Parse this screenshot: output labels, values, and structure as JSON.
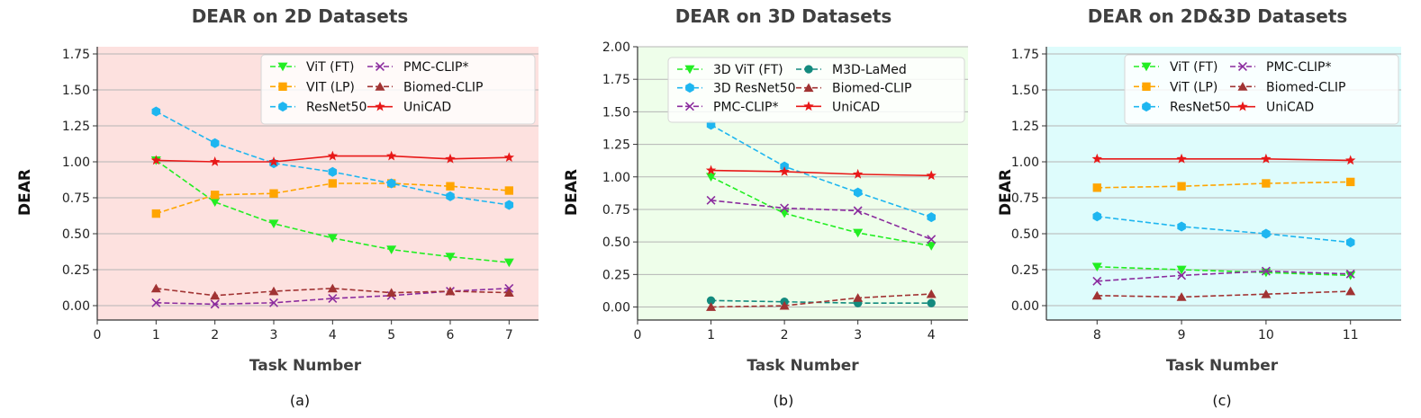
{
  "figure": {
    "name": "DEAR comparison figure"
  },
  "chart_data": [
    {
      "type": "line",
      "title": "DEAR on 2D Datasets",
      "xlabel": "Task Number",
      "ylabel": "DEAR",
      "caption": "(a)",
      "background": "#fde1df",
      "xlim": [
        0,
        7.5
      ],
      "ylim": [
        -0.1,
        1.8
      ],
      "xticks": [
        0,
        1,
        2,
        3,
        4,
        5,
        6,
        7
      ],
      "yticks": [
        0.0,
        0.25,
        0.5,
        0.75,
        1.0,
        1.25,
        1.5,
        1.75
      ],
      "grid": "horizontal",
      "legend": "top-right, 2 columns",
      "legend_columns": [
        3,
        3
      ],
      "x": [
        1,
        2,
        3,
        4,
        5,
        6,
        7
      ],
      "series": [
        {
          "name": "ViT (FT)",
          "color": "#22ee22",
          "marker": "triangle-down",
          "dash": true,
          "values": [
            1.01,
            0.72,
            0.57,
            0.47,
            0.39,
            0.34,
            0.3
          ]
        },
        {
          "name": "VIT (LP)",
          "color": "#ffa500",
          "marker": "square",
          "dash": true,
          "values": [
            0.64,
            0.77,
            0.78,
            0.85,
            0.85,
            0.83,
            0.8
          ]
        },
        {
          "name": "ResNet50",
          "color": "#1eb6f0",
          "marker": "hexagon",
          "dash": true,
          "values": [
            1.35,
            1.13,
            0.99,
            0.93,
            0.85,
            0.76,
            0.7
          ]
        },
        {
          "name": "PMC-CLIP*",
          "color": "#8b2c9e",
          "marker": "x",
          "dash": true,
          "values": [
            0.02,
            0.01,
            0.02,
            0.05,
            0.07,
            0.1,
            0.12
          ]
        },
        {
          "name": "Biomed-CLIP",
          "color": "#a13333",
          "marker": "triangle-up",
          "dash": true,
          "values": [
            0.12,
            0.07,
            0.1,
            0.12,
            0.09,
            0.1,
            0.09
          ]
        },
        {
          "name": "UniCAD",
          "color": "#e81818",
          "marker": "star",
          "dash": false,
          "values": [
            1.01,
            1.0,
            1.0,
            1.04,
            1.04,
            1.02,
            1.03
          ]
        }
      ]
    },
    {
      "type": "line",
      "title": "DEAR on 3D Datasets",
      "xlabel": "Task Number",
      "ylabel": "DEAR",
      "caption": "(b)",
      "background": "#eefeea",
      "xlim": [
        0,
        4.5
      ],
      "ylim": [
        -0.1,
        2.0
      ],
      "xticks": [
        0,
        1,
        2,
        3,
        4
      ],
      "yticks": [
        0.0,
        0.25,
        0.5,
        0.75,
        1.0,
        1.25,
        1.5,
        1.75,
        2.0
      ],
      "grid": "horizontal",
      "legend": "top-right, 2 columns",
      "legend_columns": [
        3,
        3
      ],
      "x": [
        1,
        2,
        3,
        4
      ],
      "series": [
        {
          "name": "3D ViT (FT)",
          "color": "#22ee22",
          "marker": "triangle-down",
          "dash": true,
          "values": [
            1.0,
            0.72,
            0.57,
            0.47
          ]
        },
        {
          "name": "3D ResNet50",
          "color": "#1eb6f0",
          "marker": "hexagon",
          "dash": true,
          "values": [
            1.4,
            1.08,
            0.88,
            0.69
          ]
        },
        {
          "name": "PMC-CLIP*",
          "color": "#8b2c9e",
          "marker": "x",
          "dash": true,
          "values": [
            0.82,
            0.76,
            0.74,
            0.52
          ]
        },
        {
          "name": "M3D-LaMed",
          "color": "#138a7e",
          "marker": "circle",
          "dash": true,
          "values": [
            0.05,
            0.04,
            0.03,
            0.03
          ]
        },
        {
          "name": "Biomed-CLIP",
          "color": "#a13333",
          "marker": "triangle-up",
          "dash": true,
          "values": [
            0.0,
            0.01,
            0.07,
            0.1
          ]
        },
        {
          "name": "UniCAD",
          "color": "#e81818",
          "marker": "star",
          "dash": false,
          "values": [
            1.05,
            1.04,
            1.02,
            1.01
          ]
        }
      ]
    },
    {
      "type": "line",
      "title": "DEAR on 2D&3D Datasets",
      "xlabel": "Task Number",
      "ylabel": "DEAR",
      "caption": "(c)",
      "background": "#defcfc",
      "xlim": [
        7.4,
        11.6
      ],
      "ylim": [
        -0.1,
        1.8
      ],
      "xticks": [
        8,
        9,
        10,
        11
      ],
      "yticks": [
        0.0,
        0.25,
        0.5,
        0.75,
        1.0,
        1.25,
        1.5,
        1.75
      ],
      "grid": "horizontal",
      "legend": "top-right, 2 columns",
      "legend_columns": [
        3,
        3
      ],
      "x": [
        8,
        9,
        10,
        11
      ],
      "series": [
        {
          "name": "ViT (FT)",
          "color": "#22ee22",
          "marker": "triangle-down",
          "dash": true,
          "values": [
            0.27,
            0.25,
            0.23,
            0.21
          ]
        },
        {
          "name": "ViT (LP)",
          "color": "#ffa500",
          "marker": "square",
          "dash": true,
          "values": [
            0.82,
            0.83,
            0.85,
            0.86
          ]
        },
        {
          "name": "ResNet50",
          "color": "#1eb6f0",
          "marker": "hexagon",
          "dash": true,
          "values": [
            0.62,
            0.55,
            0.5,
            0.44
          ]
        },
        {
          "name": "PMC-CLIP*",
          "color": "#8b2c9e",
          "marker": "x",
          "dash": true,
          "values": [
            0.17,
            0.21,
            0.24,
            0.22
          ]
        },
        {
          "name": "Biomed-CLIP",
          "color": "#a13333",
          "marker": "triangle-up",
          "dash": true,
          "values": [
            0.07,
            0.06,
            0.08,
            0.1
          ]
        },
        {
          "name": "UniCAD",
          "color": "#e81818",
          "marker": "star",
          "dash": false,
          "values": [
            1.02,
            1.02,
            1.02,
            1.01
          ]
        }
      ]
    }
  ]
}
